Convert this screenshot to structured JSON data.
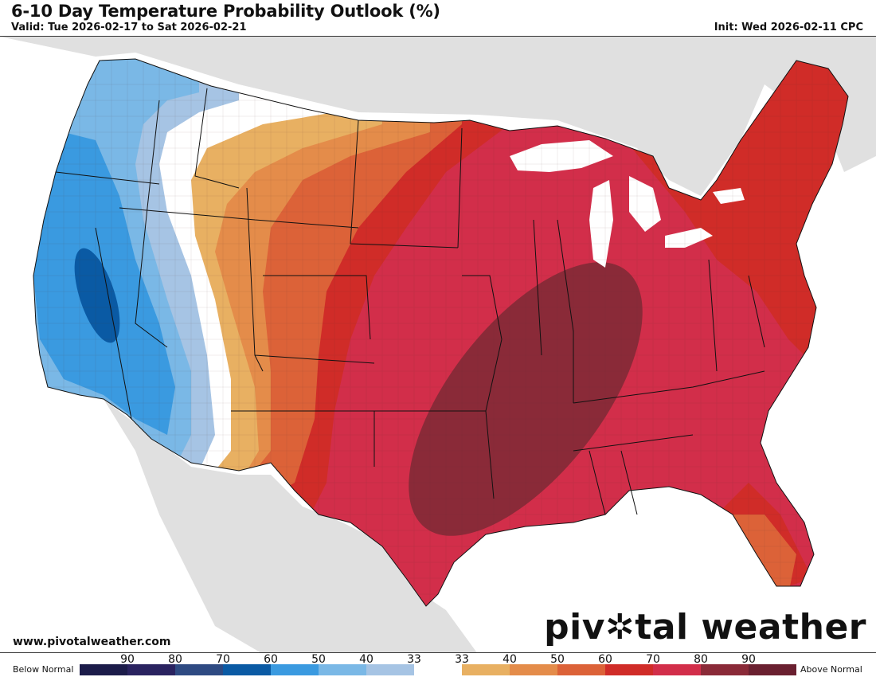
{
  "header": {
    "title": "6-10 Day Temperature Probability Outlook (%)",
    "valid": "Valid: Tue 2026-02-17 to Sat 2026-02-21",
    "init": "Init: Wed 2026-02-11 CPC"
  },
  "footer": {
    "site": "www.pivotalweather.com",
    "brand_prefix": "piv",
    "brand_suffix": "tal weather"
  },
  "legend": {
    "left_label": "Below Normal",
    "right_label": "Above Normal",
    "ticks": [
      "90",
      "80",
      "70",
      "60",
      "50",
      "40",
      "33",
      "33",
      "40",
      "50",
      "60",
      "70",
      "80",
      "90"
    ],
    "colors": [
      "#1c1c4a",
      "#2a2360",
      "#2e4a82",
      "#0a5aa4",
      "#3a9ae0",
      "#7ab8e6",
      "#a6c4e4",
      "#ffffff",
      "#e8b062",
      "#e48c4a",
      "#dc6238",
      "#d02c28",
      "#d22e4a",
      "#8a2a38",
      "#6a2030"
    ]
  },
  "map_colors": {
    "land_bg": "#e0e0e0",
    "water": "#ffffff",
    "above_33": "#e8b062",
    "above_40": "#e48c4a",
    "above_50": "#dc6238",
    "above_60": "#d02c28",
    "above_70": "#d22e4a",
    "above_80": "#8a2a38",
    "below_33": "#a6c4e4",
    "below_40": "#7ab8e6",
    "below_50": "#3a9ae0",
    "below_60": "#0a5aa4"
  }
}
